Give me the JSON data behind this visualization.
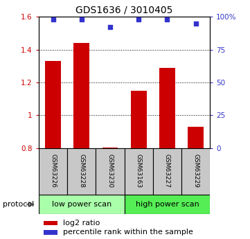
{
  "title": "GDS1636 / 3010405",
  "samples": [
    "GSM63226",
    "GSM63228",
    "GSM63230",
    "GSM63163",
    "GSM63227",
    "GSM63229"
  ],
  "log2_ratio": [
    1.33,
    1.44,
    0.805,
    1.15,
    1.29,
    0.93
  ],
  "percentile_rank": [
    98,
    98,
    92,
    98,
    98,
    95
  ],
  "bar_color": "#cc0000",
  "dot_color": "#3333cc",
  "ylim_left": [
    0.8,
    1.6
  ],
  "ylim_right": [
    0,
    100
  ],
  "yticks_left": [
    0.8,
    1.0,
    1.2,
    1.4,
    1.6
  ],
  "ytick_labels_left": [
    "0.8",
    "1",
    "1.2",
    "1.4",
    "1.6"
  ],
  "yticks_right_vals": [
    0,
    25,
    50,
    75,
    100
  ],
  "ytick_labels_right": [
    "0",
    "25",
    "50",
    "75",
    "100%"
  ],
  "grid_lines": [
    1.0,
    1.2,
    1.4
  ],
  "groups": [
    {
      "label": "low power scan",
      "samples": [
        0,
        1,
        2
      ],
      "color": "#aaffaa"
    },
    {
      "label": "high power scan",
      "samples": [
        3,
        4,
        5
      ],
      "color": "#55ee55"
    }
  ],
  "protocol_label": "protocol",
  "legend_bar_label": "log2 ratio",
  "legend_dot_label": "percentile rank within the sample",
  "bar_width": 0.55,
  "bg_label": "#c8c8c8",
  "title_fontsize": 10,
  "tick_fontsize": 7.5,
  "sample_fontsize": 6.5,
  "proto_fontsize": 8,
  "legend_fontsize": 8
}
